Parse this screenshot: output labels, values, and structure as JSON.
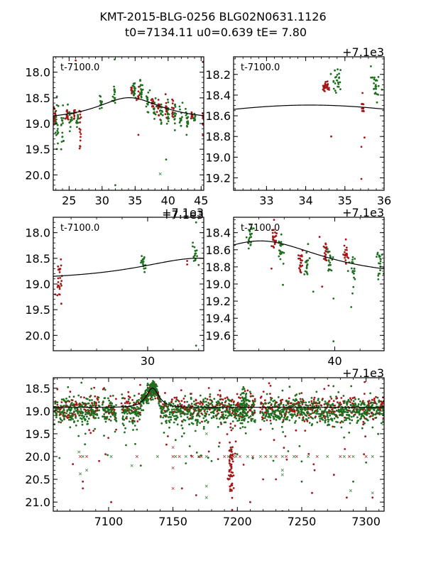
{
  "title": {
    "line1": "KMT-2015-BLG-0256 BLG02N0631.1126",
    "line2": "t0=7134.11 u0=0.639 tE=   7.80"
  },
  "colors": {
    "red": "#a51616",
    "green": "#1e6e1e",
    "model": "#000000"
  },
  "chart_data": [
    {
      "id": "top-left",
      "type": "scatter",
      "annotation": "t-7100.0",
      "x_offset_label": "+7.1e3",
      "show_offset": false,
      "xlim": [
        22.6,
        45.4
      ],
      "ylim": [
        17.7,
        20.3
      ],
      "y_inverted": true,
      "xticks": [
        25,
        30,
        35,
        40,
        45
      ],
      "xminor": 1,
      "yticks": [
        18.0,
        18.5,
        19.0,
        19.5,
        20.0
      ],
      "yminor": 0.1,
      "model": {
        "t0": 34.11,
        "u0": 0.639,
        "tE": 7.8,
        "baseline": 18.92
      },
      "clusters": [
        {
          "x": 22.8,
          "y": 18.85,
          "n": 18,
          "sx": 0.15,
          "sy": 0.12,
          "c": "red"
        },
        {
          "x": 23.2,
          "y": 19.05,
          "n": 18,
          "sx": 0.15,
          "sy": 0.22,
          "c": "green"
        },
        {
          "x": 24.0,
          "y": 19.05,
          "n": 14,
          "sx": 0.1,
          "sy": 0.2,
          "c": "green"
        },
        {
          "x": 24.7,
          "y": 18.83,
          "n": 12,
          "sx": 0.12,
          "sy": 0.06,
          "c": "red"
        },
        {
          "x": 25.2,
          "y": 18.9,
          "n": 12,
          "sx": 0.15,
          "sy": 0.1,
          "c": "green"
        },
        {
          "x": 25.8,
          "y": 18.82,
          "n": 10,
          "sx": 0.1,
          "sy": 0.06,
          "c": "red"
        },
        {
          "x": 26.2,
          "y": 18.9,
          "n": 10,
          "sx": 0.12,
          "sy": 0.1,
          "c": "green"
        },
        {
          "x": 26.7,
          "y": 19.05,
          "n": 14,
          "sx": 0.08,
          "sy": 0.2,
          "c": "red"
        },
        {
          "x": 29.8,
          "y": 18.6,
          "n": 14,
          "sx": 0.1,
          "sy": 0.1,
          "c": "green"
        },
        {
          "x": 31.8,
          "y": 18.45,
          "n": 16,
          "sx": 0.12,
          "sy": 0.1,
          "c": "green"
        },
        {
          "x": 34.5,
          "y": 18.36,
          "n": 14,
          "sx": 0.1,
          "sy": 0.05,
          "c": "red"
        },
        {
          "x": 34.9,
          "y": 18.35,
          "n": 18,
          "sx": 0.12,
          "sy": 0.1,
          "c": "green"
        },
        {
          "x": 35.5,
          "y": 18.45,
          "n": 8,
          "sx": 0.08,
          "sy": 0.08,
          "c": "red"
        },
        {
          "x": 35.9,
          "y": 18.38,
          "n": 16,
          "sx": 0.12,
          "sy": 0.1,
          "c": "green"
        },
        {
          "x": 36.9,
          "y": 18.55,
          "n": 14,
          "sx": 0.12,
          "sy": 0.1,
          "c": "green"
        },
        {
          "x": 37.6,
          "y": 18.6,
          "n": 12,
          "sx": 0.08,
          "sy": 0.08,
          "c": "red"
        },
        {
          "x": 37.9,
          "y": 18.7,
          "n": 14,
          "sx": 0.12,
          "sy": 0.12,
          "c": "green"
        },
        {
          "x": 38.6,
          "y": 18.75,
          "n": 12,
          "sx": 0.1,
          "sy": 0.1,
          "c": "red"
        },
        {
          "x": 39.0,
          "y": 18.8,
          "n": 14,
          "sx": 0.12,
          "sy": 0.12,
          "c": "green"
        },
        {
          "x": 39.7,
          "y": 18.7,
          "n": 12,
          "sx": 0.08,
          "sy": 0.08,
          "c": "red"
        },
        {
          "x": 40.0,
          "y": 18.85,
          "n": 14,
          "sx": 0.1,
          "sy": 0.12,
          "c": "green"
        },
        {
          "x": 40.7,
          "y": 18.7,
          "n": 12,
          "sx": 0.08,
          "sy": 0.08,
          "c": "red"
        },
        {
          "x": 41.0,
          "y": 18.85,
          "n": 14,
          "sx": 0.1,
          "sy": 0.12,
          "c": "green"
        },
        {
          "x": 41.9,
          "y": 18.85,
          "n": 14,
          "sx": 0.12,
          "sy": 0.1,
          "c": "green"
        },
        {
          "x": 42.9,
          "y": 18.9,
          "n": 14,
          "sx": 0.12,
          "sy": 0.1,
          "c": "green"
        },
        {
          "x": 43.6,
          "y": 18.85,
          "n": 12,
          "sx": 0.08,
          "sy": 0.06,
          "c": "red"
        },
        {
          "x": 44.0,
          "y": 18.9,
          "n": 10,
          "sx": 0.1,
          "sy": 0.08,
          "c": "green"
        },
        {
          "x": 45.3,
          "y": 18.9,
          "n": 10,
          "sx": 0.08,
          "sy": 0.1,
          "c": "red"
        }
      ],
      "points": [
        {
          "x": 26.0,
          "y": 17.77,
          "c": "red"
        },
        {
          "x": 31.9,
          "y": 17.75,
          "c": "green"
        },
        {
          "x": 24.8,
          "y": 18.63,
          "c": "green"
        },
        {
          "x": 32.0,
          "y": 20.2,
          "c": "green"
        },
        {
          "x": 39.7,
          "y": 19.7,
          "c": "green"
        },
        {
          "x": 35.5,
          "y": 19.22,
          "c": "red"
        },
        {
          "x": 45.3,
          "y": 17.8,
          "c": "red"
        },
        {
          "x": 23.8,
          "y": 19.5,
          "c": "green"
        },
        {
          "x": 26.7,
          "y": 19.45,
          "c": "red"
        },
        {
          "x": 42.8,
          "y": 19.22,
          "c": "green"
        }
      ],
      "crosses": [
        {
          "x": 38.8,
          "y": 19.98,
          "c": "green"
        }
      ]
    },
    {
      "id": "top-right",
      "type": "scatter",
      "annotation": "t-7100.0",
      "x_offset_label": "+7.1e3",
      "show_offset": true,
      "xlim": [
        32.16,
        36.0
      ],
      "ylim": [
        18.03,
        19.32
      ],
      "y_inverted": true,
      "xticks": [
        33,
        34,
        35,
        36
      ],
      "xminor": 0.2,
      "yticks": [
        18.2,
        18.4,
        18.6,
        18.8,
        19.0,
        19.2
      ],
      "yminor": 0.05,
      "model": {
        "t0": 34.11,
        "u0": 0.639,
        "tE": 7.8,
        "baseline": 18.92
      },
      "clusters": [
        {
          "x": 34.5,
          "y": 18.31,
          "n": 28,
          "sx": 0.06,
          "sy": 0.025,
          "c": "red"
        },
        {
          "x": 34.8,
          "y": 18.25,
          "n": 24,
          "sx": 0.06,
          "sy": 0.06,
          "c": "green"
        },
        {
          "x": 35.45,
          "y": 18.5,
          "n": 10,
          "sx": 0.02,
          "sy": 0.04,
          "c": "red"
        },
        {
          "x": 35.8,
          "y": 18.3,
          "n": 24,
          "sx": 0.06,
          "sy": 0.07,
          "c": "green"
        }
      ],
      "points": [
        {
          "x": 34.65,
          "y": 18.8,
          "c": "red"
        },
        {
          "x": 35.42,
          "y": 18.9,
          "c": "red"
        },
        {
          "x": 35.5,
          "y": 18.81,
          "c": "red"
        },
        {
          "x": 35.42,
          "y": 19.21,
          "c": "red"
        },
        {
          "x": 35.45,
          "y": 18.38,
          "c": "red"
        }
      ],
      "crosses": []
    },
    {
      "id": "middle-left",
      "type": "scatter",
      "annotation": "t-7100.0",
      "x_offset_label": "+7.1e3",
      "show_offset": true,
      "xlim": [
        22.6,
        34.4
      ],
      "ylim": [
        17.7,
        20.3
      ],
      "y_inverted": true,
      "xticks": [
        30
      ],
      "xminor": 2,
      "yticks": [
        18.0,
        18.5,
        19.0,
        19.5,
        20.0
      ],
      "yminor": 0.1,
      "model": {
        "t0": 34.11,
        "u0": 0.639,
        "tE": 7.8,
        "baseline": 18.92
      },
      "clusters": [
        {
          "x": 23.1,
          "y": 19.0,
          "n": 24,
          "sx": 0.12,
          "sy": 0.2,
          "c": "red"
        },
        {
          "x": 29.7,
          "y": 18.6,
          "n": 18,
          "sx": 0.1,
          "sy": 0.07,
          "c": "green"
        },
        {
          "x": 33.7,
          "y": 18.4,
          "n": 16,
          "sx": 0.12,
          "sy": 0.1,
          "c": "green"
        }
      ],
      "points": [
        {
          "x": 23.2,
          "y": 18.52,
          "c": "red"
        },
        {
          "x": 33.1,
          "y": 18.55,
          "c": "red"
        },
        {
          "x": 33.1,
          "y": 18.62,
          "c": "red"
        },
        {
          "x": 33.8,
          "y": 17.8,
          "c": "green"
        },
        {
          "x": 33.8,
          "y": 20.2,
          "c": "green"
        },
        {
          "x": 34.0,
          "y": 18.63,
          "c": "green"
        }
      ],
      "crosses": []
    },
    {
      "id": "middle-right",
      "type": "scatter",
      "annotation": "t-7100.0",
      "x_offset_label": "+7.1e3",
      "show_offset": true,
      "xlim": [
        32.0,
        43.9
      ],
      "ylim": [
        18.22,
        19.78
      ],
      "y_inverted": true,
      "xticks": [
        40
      ],
      "xminor": 2,
      "yticks": [
        18.4,
        18.6,
        18.8,
        19.0,
        19.2,
        19.4,
        19.6
      ],
      "yminor": 0.05,
      "model": {
        "t0": 34.11,
        "u0": 0.639,
        "tE": 7.8,
        "baseline": 18.92
      },
      "clusters": [
        {
          "x": 33.3,
          "y": 18.45,
          "n": 22,
          "sx": 0.12,
          "sy": 0.06,
          "c": "green"
        },
        {
          "x": 35.2,
          "y": 18.47,
          "n": 22,
          "sx": 0.12,
          "sy": 0.06,
          "c": "red"
        },
        {
          "x": 35.7,
          "y": 18.6,
          "n": 20,
          "sx": 0.12,
          "sy": 0.08,
          "c": "green"
        },
        {
          "x": 37.3,
          "y": 18.7,
          "n": 22,
          "sx": 0.08,
          "sy": 0.1,
          "c": "red"
        },
        {
          "x": 37.8,
          "y": 18.75,
          "n": 18,
          "sx": 0.12,
          "sy": 0.12,
          "c": "green"
        },
        {
          "x": 39.3,
          "y": 18.63,
          "n": 20,
          "sx": 0.1,
          "sy": 0.07,
          "c": "red"
        },
        {
          "x": 39.6,
          "y": 18.75,
          "n": 18,
          "sx": 0.12,
          "sy": 0.1,
          "c": "green"
        },
        {
          "x": 40.9,
          "y": 18.65,
          "n": 22,
          "sx": 0.12,
          "sy": 0.06,
          "c": "red"
        },
        {
          "x": 41.4,
          "y": 18.82,
          "n": 18,
          "sx": 0.12,
          "sy": 0.12,
          "c": "green"
        },
        {
          "x": 43.6,
          "y": 18.8,
          "n": 20,
          "sx": 0.12,
          "sy": 0.1,
          "c": "green"
        }
      ],
      "points": [
        {
          "x": 35.2,
          "y": 18.25,
          "c": "red"
        },
        {
          "x": 35.0,
          "y": 18.82,
          "c": "red"
        },
        {
          "x": 35.9,
          "y": 19.01,
          "c": "green"
        },
        {
          "x": 38.3,
          "y": 19.09,
          "c": "green"
        },
        {
          "x": 39.0,
          "y": 19.03,
          "c": "red"
        },
        {
          "x": 39.9,
          "y": 19.17,
          "c": "green"
        },
        {
          "x": 39.9,
          "y": 19.67,
          "c": "green"
        },
        {
          "x": 41.3,
          "y": 19.27,
          "c": "green"
        },
        {
          "x": 41.4,
          "y": 19.11,
          "c": "green"
        },
        {
          "x": 38.8,
          "y": 18.45,
          "c": "red"
        }
      ],
      "crosses": []
    },
    {
      "id": "bottom",
      "type": "scatter",
      "annotation": "",
      "x_offset_label": "+7.1e3",
      "show_offset": true,
      "xlim": [
        7057,
        7314
      ],
      "ylim": [
        18.27,
        21.2
      ],
      "y_inverted": true,
      "xticks": [
        7100,
        7150,
        7200,
        7250,
        7300
      ],
      "xminor": 10,
      "yticks": [
        18.5,
        19.0,
        19.5,
        20.0,
        20.5,
        21.0
      ],
      "yminor": 0.1,
      "model": {
        "t0": 7134.11,
        "u0": 0.639,
        "tE": 7.8,
        "baseline": 18.92
      },
      "bands": {
        "x_from": 7058,
        "x_to": 7314,
        "mean": 18.98,
        "sd": 0.14
      },
      "clusters": [
        {
          "x": 7195,
          "y": 20.2,
          "n": 60,
          "sx": 1.2,
          "sy": 0.35,
          "c": "red"
        },
        {
          "x": 7134,
          "y": 18.5,
          "n": 40,
          "sx": 1.5,
          "sy": 0.15,
          "c": "green"
        },
        {
          "x": 7205,
          "y": 18.9,
          "n": 60,
          "sx": 1.5,
          "sy": 0.25,
          "c": "green"
        }
      ],
      "points": [
        {
          "x": 7080,
          "y": 20.7,
          "c": "red"
        },
        {
          "x": 7080,
          "y": 20.55,
          "c": "red"
        },
        {
          "x": 7102,
          "y": 21.0,
          "c": "red"
        },
        {
          "x": 7157,
          "y": 20.7,
          "c": "red"
        },
        {
          "x": 7168,
          "y": 20.85,
          "c": "red"
        },
        {
          "x": 7082,
          "y": 19.5,
          "c": "green"
        },
        {
          "x": 7125,
          "y": 20.2,
          "c": "green"
        },
        {
          "x": 7160,
          "y": 20.15,
          "c": "green"
        },
        {
          "x": 7210,
          "y": 21.0,
          "c": "red"
        },
        {
          "x": 7235,
          "y": 21.2,
          "c": "red"
        },
        {
          "x": 7258,
          "y": 20.8,
          "c": "red"
        },
        {
          "x": 7285,
          "y": 20.9,
          "c": "red"
        },
        {
          "x": 7305,
          "y": 20.9,
          "c": "red"
        },
        {
          "x": 7230,
          "y": 20.5,
          "c": "red"
        },
        {
          "x": 7260,
          "y": 20.3,
          "c": "red"
        },
        {
          "x": 7275,
          "y": 20.4,
          "c": "red"
        },
        {
          "x": 7290,
          "y": 20.55,
          "c": "green"
        },
        {
          "x": 7250,
          "y": 20.55,
          "c": "green"
        },
        {
          "x": 7220,
          "y": 20.5,
          "c": "red"
        },
        {
          "x": 7180,
          "y": 20.1,
          "c": "green"
        }
      ],
      "row_crosses": {
        "y": 20.0,
        "xs": [
          7078,
          7080,
          7083,
          7102,
          7122,
          7138,
          7150,
          7152,
          7155,
          7160,
          7165,
          7170,
          7172,
          7176,
          7190,
          7193,
          7197,
          7199,
          7202,
          7208,
          7212,
          7218,
          7222,
          7226,
          7230,
          7235,
          7238,
          7244,
          7246,
          7255,
          7262,
          7270,
          7280,
          7283,
          7287,
          7290,
          7300,
          7305
        ]
      },
      "crosses": [
        {
          "x": 7077,
          "y": 19.9,
          "c": "green"
        },
        {
          "x": 7078,
          "y": 20.38,
          "c": "green"
        },
        {
          "x": 7083,
          "y": 20.3,
          "c": "green"
        },
        {
          "x": 7118,
          "y": 20.2,
          "c": "green"
        },
        {
          "x": 7150,
          "y": 19.8,
          "c": "red"
        },
        {
          "x": 7150,
          "y": 20.25,
          "c": "red"
        },
        {
          "x": 7150,
          "y": 20.7,
          "c": "red"
        },
        {
          "x": 7176,
          "y": 19.5,
          "c": "green"
        },
        {
          "x": 7176,
          "y": 20.65,
          "c": "green"
        },
        {
          "x": 7176,
          "y": 20.9,
          "c": "green"
        },
        {
          "x": 7235,
          "y": 20.3,
          "c": "green"
        },
        {
          "x": 7235,
          "y": 20.4,
          "c": "green"
        },
        {
          "x": 7288,
          "y": 20.75,
          "c": "green"
        },
        {
          "x": 7305,
          "y": 20.8,
          "c": "green"
        }
      ]
    }
  ]
}
